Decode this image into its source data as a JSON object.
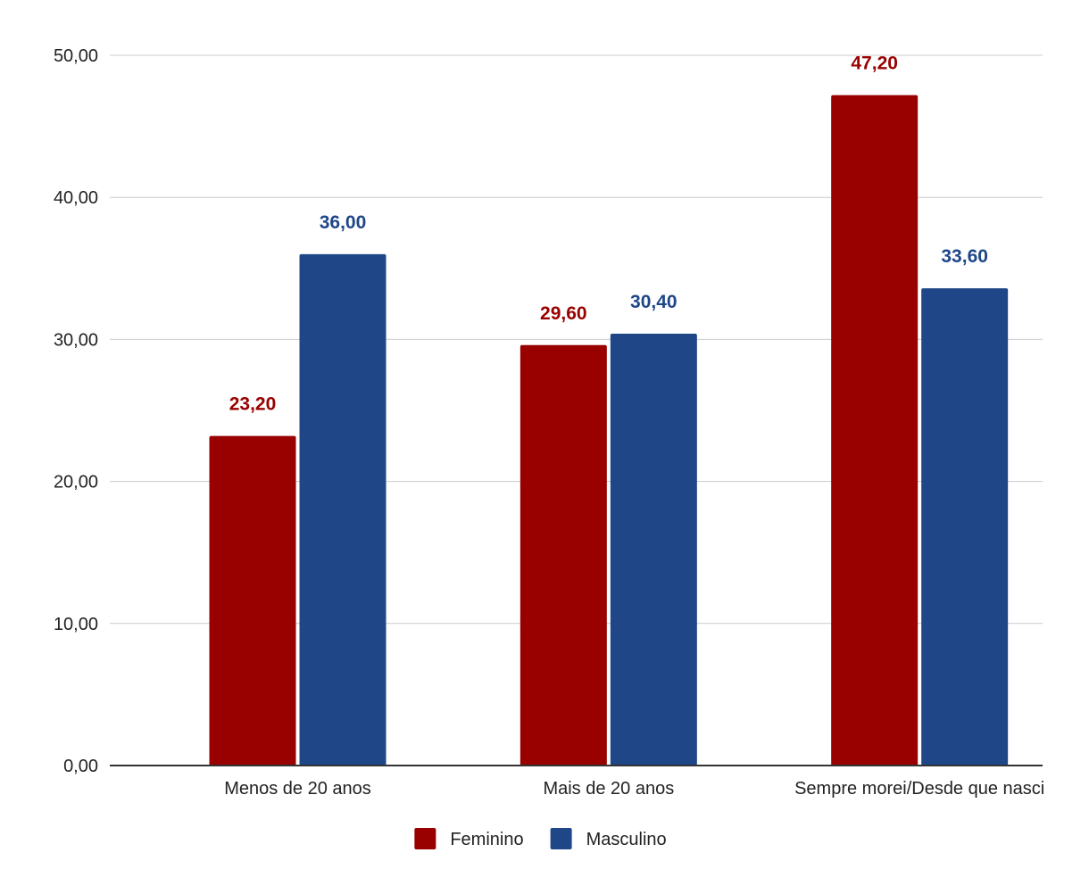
{
  "chart_data": {
    "type": "bar",
    "title": "",
    "xlabel": "",
    "ylabel": "",
    "categories": [
      "Menos de 20 anos",
      "Mais de 20 anos",
      "Sempre morei/Desde que nasci"
    ],
    "series": [
      {
        "name": "Feminino",
        "color": "#990000",
        "values": [
          23.2,
          29.6,
          47.2
        ],
        "labels": [
          "23,20",
          "29,60",
          "47,20"
        ]
      },
      {
        "name": "Masculino",
        "color": "#1f4788",
        "values": [
          36.0,
          30.4,
          33.6
        ],
        "labels": [
          "36,00",
          "30,40",
          "33,60"
        ]
      }
    ],
    "ylim": [
      0,
      50
    ],
    "yticks": [
      0,
      10,
      20,
      30,
      40,
      50
    ],
    "ytick_labels": [
      "0,00",
      "10,00",
      "20,00",
      "30,00",
      "40,00",
      "50,00"
    ],
    "grid": true,
    "legend_position": "bottom-center"
  }
}
